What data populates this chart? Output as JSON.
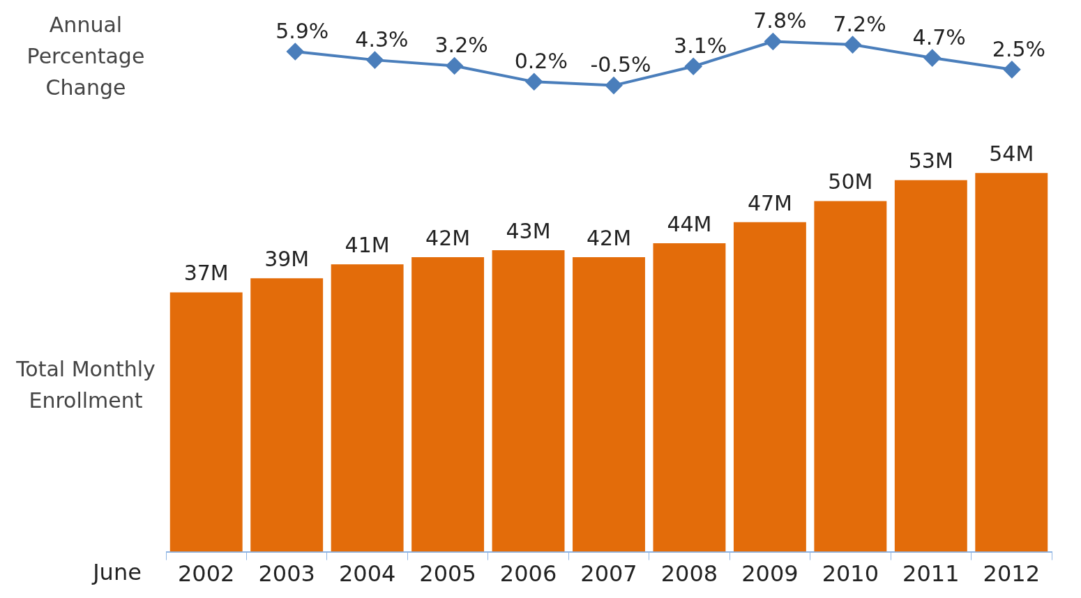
{
  "chart_data": [
    {
      "type": "line",
      "ylabel": "Annual Percentage Change",
      "categories": [
        null,
        null,
        null,
        null,
        null,
        null,
        null,
        null,
        null,
        null,
        null
      ],
      "tick_labels": false,
      "marker": "diamond",
      "line_style": "solid",
      "series": [
        {
          "color": "#4a7ebb",
          "values": [
            null,
            5.9,
            4.3,
            3.2,
            0.2,
            -0.5,
            3.1,
            7.8,
            7.2,
            4.7,
            2.5
          ],
          "value_labels": [
            null,
            "5.9%",
            "4.3%",
            "3.2%",
            "0.2%",
            "-0.5%",
            "3.1%",
            "7.8%",
            "7.2%",
            "4.7%",
            "2.5%"
          ]
        }
      ]
    },
    {
      "type": "bar",
      "ylabel": "Total Monthly Enrollment",
      "xlabel": "June",
      "tick_labels": "x",
      "categories": [
        "2002",
        "2003",
        "2004",
        "2005",
        "2006",
        "2007",
        "2008",
        "2009",
        "2010",
        "2011",
        "2012"
      ],
      "series": [
        {
          "color": "#e36c0a",
          "values": [
            37,
            39,
            41,
            42,
            43,
            42,
            44,
            47,
            50,
            53,
            54
          ],
          "value_labels": [
            "37M",
            "39M",
            "41M",
            "42M",
            "43M",
            "42M",
            "44M",
            "47M",
            "50M",
            "53M",
            "54M"
          ]
        }
      ]
    }
  ]
}
